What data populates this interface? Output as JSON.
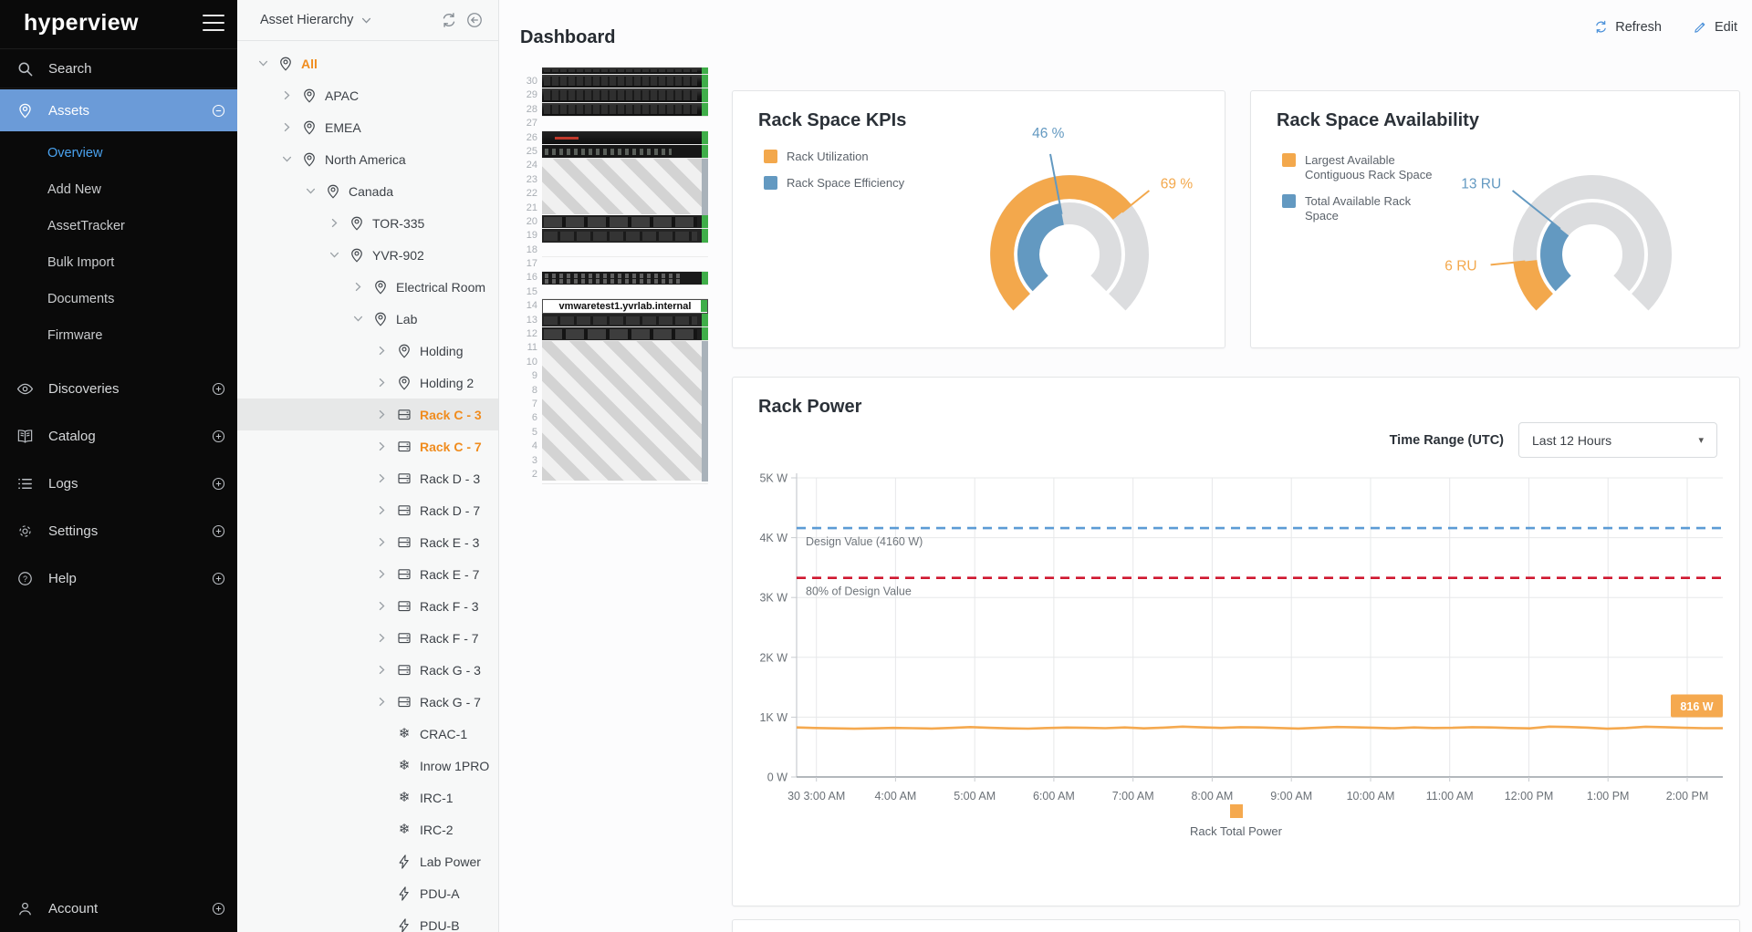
{
  "sidebar": {
    "logo_text": "hyperview",
    "search_label": "Search",
    "sections": [
      {
        "label": "Assets",
        "icon": "pin",
        "toggle": "minus",
        "active": true,
        "children": [
          "Overview",
          "Add New",
          "AssetTracker",
          "Bulk Import",
          "Documents",
          "Firmware"
        ],
        "active_child": "Overview"
      },
      {
        "label": "Discoveries",
        "icon": "eye",
        "toggle": "plus"
      },
      {
        "label": "Catalog",
        "icon": "book",
        "toggle": "plus"
      },
      {
        "label": "Logs",
        "icon": "list",
        "toggle": "plus"
      },
      {
        "label": "Settings",
        "icon": "gear",
        "toggle": "plus"
      },
      {
        "label": "Help",
        "icon": "help",
        "toggle": "plus"
      }
    ],
    "footer": {
      "label": "Account",
      "icon": "person",
      "toggle": "plus"
    }
  },
  "tree_panel": {
    "title": "Asset Hierarchy",
    "nodes": [
      {
        "label": "All",
        "level": 0,
        "chevron": "down",
        "icon": "pin",
        "orange": true
      },
      {
        "label": "APAC",
        "level": 1,
        "chevron": "right",
        "icon": "pin"
      },
      {
        "label": "EMEA",
        "level": 1,
        "chevron": "right",
        "icon": "pin"
      },
      {
        "label": "North America",
        "level": 1,
        "chevron": "down",
        "icon": "pin"
      },
      {
        "label": "Canada",
        "level": 2,
        "chevron": "down",
        "icon": "pin"
      },
      {
        "label": "TOR-335",
        "level": 3,
        "chevron": "right",
        "icon": "pin"
      },
      {
        "label": "YVR-902",
        "level": 3,
        "chevron": "down",
        "icon": "pin"
      },
      {
        "label": "Electrical Room",
        "level": 4,
        "chevron": "right",
        "icon": "pin"
      },
      {
        "label": "Lab",
        "level": 4,
        "chevron": "down",
        "icon": "pin"
      },
      {
        "label": "Holding",
        "level": 5,
        "chevron": "right",
        "icon": "pin"
      },
      {
        "label": "Holding 2",
        "level": 5,
        "chevron": "right",
        "icon": "pin"
      },
      {
        "label": "Rack C - 3",
        "level": 5,
        "chevron": "right",
        "icon": "rack",
        "orange": true,
        "selected": true
      },
      {
        "label": "Rack C - 7",
        "level": 5,
        "chevron": "right",
        "icon": "rack",
        "orange": true
      },
      {
        "label": "Rack D - 3",
        "level": 5,
        "chevron": "right",
        "icon": "rack"
      },
      {
        "label": "Rack D - 7",
        "level": 5,
        "chevron": "right",
        "icon": "rack"
      },
      {
        "label": "Rack E - 3",
        "level": 5,
        "chevron": "right",
        "icon": "rack"
      },
      {
        "label": "Rack E - 7",
        "level": 5,
        "chevron": "right",
        "icon": "rack"
      },
      {
        "label": "Rack F - 3",
        "level": 5,
        "chevron": "right",
        "icon": "rack"
      },
      {
        "label": "Rack F - 7",
        "level": 5,
        "chevron": "right",
        "icon": "rack"
      },
      {
        "label": "Rack G - 3",
        "level": 5,
        "chevron": "right",
        "icon": "rack"
      },
      {
        "label": "Rack G - 7",
        "level": 5,
        "chevron": "right",
        "icon": "rack"
      },
      {
        "label": "CRAC-1",
        "level": 5,
        "chevron": "none",
        "icon": "cooling"
      },
      {
        "label": "Inrow 1PRO",
        "level": 5,
        "chevron": "none",
        "icon": "cooling"
      },
      {
        "label": "IRC-1",
        "level": 5,
        "chevron": "none",
        "icon": "cooling"
      },
      {
        "label": "IRC-2",
        "level": 5,
        "chevron": "none",
        "icon": "cooling"
      },
      {
        "label": "Lab Power",
        "level": 5,
        "chevron": "none",
        "icon": "power"
      },
      {
        "label": "PDU-A",
        "level": 5,
        "chevron": "none",
        "icon": "power"
      },
      {
        "label": "PDU-B",
        "level": 5,
        "chevron": "none",
        "icon": "power"
      }
    ]
  },
  "header": {
    "title": "Dashboard",
    "refresh_label": "Refresh",
    "edit_label": "Edit"
  },
  "rack_elevation": {
    "units": [
      {
        "u": 31,
        "kind": "server_red",
        "green": true,
        "partial": true
      },
      {
        "u": 30,
        "kind": "server_red",
        "green": true
      },
      {
        "u": 29,
        "kind": "server_red",
        "green": true
      },
      {
        "u": 28,
        "kind": "server_red",
        "green": true
      },
      {
        "u": 27,
        "kind": "empty"
      },
      {
        "u": 26,
        "kind": "appliance",
        "green": true
      },
      {
        "u": 25,
        "kind": "switch",
        "green": true
      },
      {
        "u": 24,
        "kind": "hatch",
        "span": 4
      },
      {
        "u": 20,
        "kind": "server_dell",
        "green": true
      },
      {
        "u": 19,
        "kind": "server_drives",
        "green": true
      },
      {
        "u": 18,
        "kind": "empty"
      },
      {
        "u": 17,
        "kind": "empty"
      },
      {
        "u": 16,
        "kind": "switch2",
        "green": true
      },
      {
        "u": 15,
        "kind": "empty"
      },
      {
        "u": 14,
        "kind": "label",
        "green": true,
        "text": "vmwaretest1.yvrlab.internal"
      },
      {
        "u": 13,
        "kind": "server_drives",
        "green": true
      },
      {
        "u": 12,
        "kind": "server_dell",
        "green": true
      },
      {
        "u": 11,
        "kind": "hatch",
        "span": 10
      }
    ]
  },
  "chart_data": [
    {
      "type": "gauge",
      "title": "Rack Space KPIs",
      "sweep_deg": 270,
      "series": [
        {
          "name": "Rack Utilization",
          "ring": "outer",
          "value": 69,
          "display": "69 %",
          "fraction": 0.69,
          "color": "#f3a84c"
        },
        {
          "name": "Rack Space Efficiency",
          "ring": "inner",
          "value": 46,
          "display": "46 %",
          "fraction": 0.46,
          "color": "#6399c1"
        }
      ]
    },
    {
      "type": "gauge",
      "title": "Rack Space Availability",
      "sweep_deg": 270,
      "series": [
        {
          "name": "Largest Available Contiguous Rack Space",
          "ring": "outer",
          "value": 6,
          "display": "6 RU",
          "fraction": 0.145,
          "color": "#f3a84c"
        },
        {
          "name": "Total Available Rack Space",
          "ring": "inner",
          "value": 13,
          "display": "13 RU",
          "fraction": 0.31,
          "color": "#6399c1"
        }
      ]
    },
    {
      "type": "line",
      "title": "Rack Power",
      "time_range_label": "Time Range (UTC)",
      "time_range_value": "Last 12 Hours",
      "ylim": [
        0,
        5000
      ],
      "y_ticks": [
        "0 W",
        "1K W",
        "2K W",
        "3K W",
        "4K W",
        "5K W"
      ],
      "x_ticks": [
        "30 3:00 AM",
        "4:00 AM",
        "5:00 AM",
        "6:00 AM",
        "7:00 AM",
        "8:00 AM",
        "9:00 AM",
        "10:00 AM",
        "11:00 AM",
        "12:00 PM",
        "1:00 PM",
        "2:00 PM"
      ],
      "reference_lines": [
        {
          "label": "Design Value (4160 W)",
          "value": 4160,
          "color": "#5b9bd5",
          "style": "dashed"
        },
        {
          "label": "80% of Design Value",
          "value": 3328,
          "color": "#cf1830",
          "style": "dashed"
        }
      ],
      "series": [
        {
          "name": "Rack Total Power",
          "color": "#f5a94f",
          "values": [
            828,
            818,
            812,
            806,
            812,
            820,
            816,
            810,
            820,
            834,
            822,
            812,
            808,
            818,
            826,
            822,
            816,
            828,
            812,
            824,
            842,
            830,
            820,
            832,
            828,
            818,
            810,
            822,
            836,
            830,
            822,
            814,
            828,
            818,
            822,
            832,
            828,
            818,
            812,
            842,
            836,
            824,
            806,
            818,
            840,
            832,
            822,
            816,
            816
          ]
        }
      ],
      "end_badge": "816 W",
      "legend": [
        "Rack Total Power"
      ]
    }
  ],
  "colors": {
    "accent_blue": "#4a90d9",
    "active_row_blue": "#6b9bd8",
    "tree_orange": "#f08c1e",
    "gauge_orange": "#f3a84c",
    "gauge_blue": "#6399c1",
    "gauge_gray": "#dcdddf",
    "rack_green": "#3fae49",
    "ref_blue": "#5b9bd5",
    "ref_red": "#cf1830"
  }
}
